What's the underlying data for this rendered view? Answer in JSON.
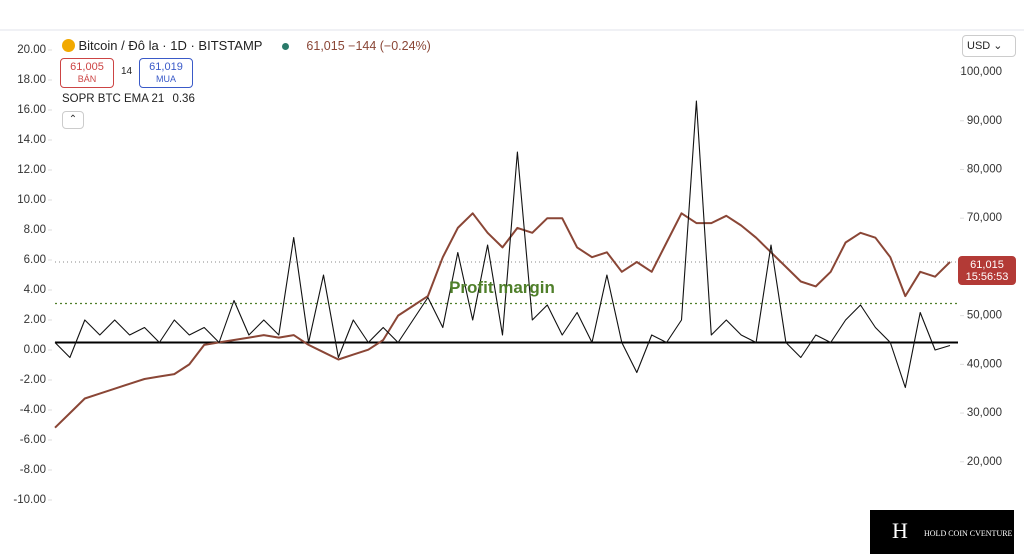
{
  "header": {
    "symbol": "Bitcoin / Đô la · 1D · BITSTAMP",
    "last": "61,015",
    "change": "−144 (−0.24%)",
    "sell": "61,005",
    "sell_label": "BÁN",
    "spread": "14",
    "buy": "61,019",
    "buy_label": "MUA",
    "indicator": "SOPR BTC EMA 21",
    "indicator_value": "0.36",
    "currency": "USD"
  },
  "price_tag": {
    "price": "61,015",
    "time": "15:56:53"
  },
  "watermark": "HOLD COIN CVENTURE",
  "chart_data": {
    "type": "line",
    "categories": [
      null,
      null,
      null,
      null,
      null,
      null,
      null,
      null,
      null,
      null,
      null,
      null,
      null,
      null,
      null,
      null,
      null,
      null,
      null,
      null,
      null,
      null,
      null,
      null,
      null,
      null,
      null,
      null,
      null,
      null,
      null,
      null,
      null,
      null,
      null,
      null,
      null,
      null,
      null,
      null,
      null,
      null,
      null,
      null,
      null,
      null,
      null,
      null,
      null,
      null,
      null,
      null,
      null,
      null,
      null,
      null,
      null,
      null,
      null,
      null,
      null
    ],
    "ylim": [
      -12,
      21
    ],
    "yticks": [
      {
        "value": 20,
        "label": "20.00"
      },
      {
        "value": 18,
        "label": "18.00"
      },
      {
        "value": 16,
        "label": "16.00"
      },
      {
        "value": 14,
        "label": "14.00"
      },
      {
        "value": 12,
        "label": "12.00"
      },
      {
        "value": 10,
        "label": "10.00"
      },
      {
        "value": 8,
        "label": "8.00"
      },
      {
        "value": 6,
        "label": "6.00"
      },
      {
        "value": 4,
        "label": "4.00"
      },
      {
        "value": 2,
        "label": "2.00"
      },
      {
        "value": 0,
        "label": "0.00"
      },
      {
        "value": -2,
        "label": "-2.00"
      },
      {
        "value": -4,
        "label": "-4.00"
      },
      {
        "value": -6,
        "label": "-6.00"
      },
      {
        "value": -8,
        "label": "-8.00"
      },
      {
        "value": -10,
        "label": "-10.00"
      }
    ],
    "y2lim": [
      6000,
      107600
    ],
    "y2ticks": [
      {
        "value": 100000,
        "label": "100,000"
      },
      {
        "value": 90000,
        "label": "90,000"
      },
      {
        "value": 80000,
        "label": "80,000"
      },
      {
        "value": 70000,
        "label": "70,000"
      },
      {
        "value": 60000,
        "label": "60,000"
      },
      {
        "value": 50000,
        "label": "50,000"
      },
      {
        "value": 40000,
        "label": "40,000"
      },
      {
        "value": 30000,
        "label": "30,000"
      },
      {
        "value": 20000,
        "label": "20,000"
      }
    ],
    "reference_line": 0.5,
    "annotation": {
      "text": "Profit margin",
      "value": 3.1,
      "color": "#4f7f2a"
    },
    "last_price": 61015,
    "series": [
      {
        "name": "SOPR BTC EMA 21",
        "color": "#111111",
        "values": [
          0.5,
          -0.5,
          2,
          1,
          2,
          1,
          1.5,
          0.5,
          2,
          1,
          1.5,
          0.5,
          3.3,
          1,
          2,
          1,
          7.5,
          0.5,
          5,
          -0.5,
          2,
          0.5,
          1.5,
          0.5,
          2,
          3.5,
          1.5,
          6.5,
          2,
          7,
          1,
          13.2,
          2,
          3,
          1,
          2.5,
          0.5,
          5,
          0.5,
          -1.5,
          1,
          0.5,
          2,
          16.6,
          1,
          2,
          1,
          0.5,
          7,
          0.5,
          -0.5,
          1,
          0.5,
          2,
          3,
          1.5,
          0.5,
          -2.5,
          2.5,
          0,
          0.3
        ]
      },
      {
        "name": "Bitcoin / Đô la",
        "color": "#8a4636",
        "axis": "y2",
        "values": [
          27000,
          30000,
          33000,
          34000,
          35000,
          36000,
          37000,
          37500,
          38000,
          40000,
          44000,
          44500,
          45000,
          45500,
          46000,
          45500,
          46000,
          44000,
          42500,
          41000,
          42000,
          43000,
          45000,
          50000,
          52000,
          54000,
          62000,
          68000,
          71000,
          67000,
          64000,
          68000,
          67000,
          70000,
          70000,
          64000,
          62000,
          63000,
          59000,
          61000,
          59000,
          65000,
          71000,
          69000,
          69000,
          70500,
          68500,
          66000,
          63000,
          60000,
          57000,
          56000,
          59000,
          65000,
          67000,
          66000,
          62000,
          54000,
          59000,
          58000,
          61015
        ]
      }
    ]
  }
}
